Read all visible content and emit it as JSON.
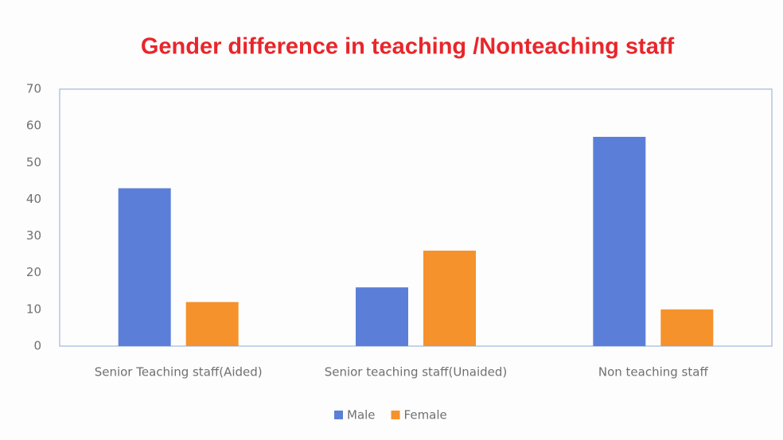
{
  "chart_data": {
    "type": "bar",
    "title": "Gender difference in teaching /Nonteaching staff",
    "categories": [
      "Senior Teaching staff(Aided)",
      "Senior teaching staff(Unaided)",
      "Non teaching staff"
    ],
    "series": [
      {
        "name": "Male",
        "color": "#5b7fd8",
        "values": [
          43,
          16,
          57
        ]
      },
      {
        "name": "Female",
        "color": "#f5922b",
        "values": [
          12,
          26,
          10
        ]
      }
    ],
    "ylim": [
      0,
      70
    ],
    "yticks": [
      0,
      10,
      20,
      30,
      40,
      50,
      60,
      70
    ],
    "grid": false,
    "legend": "bottom"
  }
}
